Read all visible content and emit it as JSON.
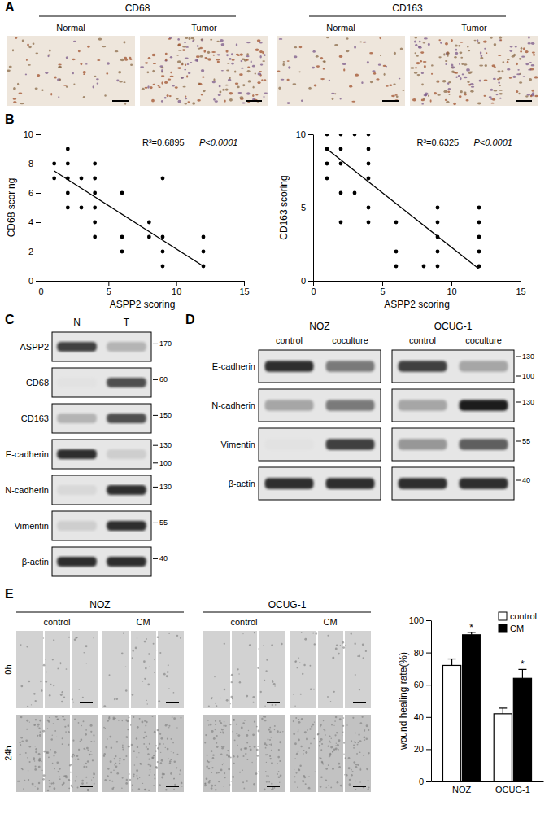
{
  "panel_labels": [
    "A",
    "B",
    "C",
    "D",
    "E"
  ],
  "panel_a": {
    "groups": [
      {
        "title": "CD68",
        "images": [
          "Normal",
          "Tumor"
        ]
      },
      {
        "title": "CD163",
        "images": [
          "Normal",
          "Tumor"
        ]
      }
    ]
  },
  "chart_data": [
    {
      "type": "scatter",
      "xlabel": "ASPP2 scoring",
      "ylabel": "CD68 scoring",
      "color": "#000000",
      "marker": "circle",
      "x": [
        1,
        1,
        2,
        2,
        2,
        2,
        2,
        3,
        3,
        4,
        4,
        4,
        4,
        4,
        4,
        6,
        6,
        6,
        8,
        8,
        9,
        9,
        9,
        9,
        12,
        12,
        12
      ],
      "values": [
        8,
        7,
        9,
        8,
        7,
        6,
        5,
        7,
        5,
        8,
        7,
        6,
        5,
        4,
        3,
        6,
        3,
        2,
        4,
        3,
        7,
        3,
        2,
        1,
        3,
        2,
        1
      ],
      "xlim": [
        0,
        15
      ],
      "xticks": [
        0,
        5,
        10,
        15
      ],
      "ylim": [
        0,
        10
      ],
      "yticks": [
        0,
        2,
        4,
        6,
        8,
        10
      ],
      "annotations": [
        "R²=0.6895",
        "P<0.0001"
      ],
      "fit": {
        "x": [
          1,
          12
        ],
        "y": [
          7.5,
          1
        ]
      }
    },
    {
      "type": "scatter",
      "xlabel": "ASPP2 scoring",
      "ylabel": "CD163 scoring",
      "color": "#000000",
      "marker": "circle",
      "x": [
        1,
        1,
        1,
        1,
        2,
        2,
        2,
        2,
        2,
        3,
        3,
        4,
        4,
        4,
        4,
        4,
        4,
        6,
        6,
        6,
        8,
        9,
        9,
        9,
        9,
        9,
        12,
        12,
        12,
        12,
        12
      ],
      "values": [
        10,
        9,
        8,
        7,
        10,
        9,
        8,
        6,
        4,
        10,
        6,
        10,
        9,
        8,
        7,
        5,
        4,
        4,
        2,
        1,
        1,
        5,
        4,
        3,
        2,
        1,
        5,
        4,
        3,
        2,
        1
      ],
      "xlim": [
        0,
        15
      ],
      "xticks": [
        0,
        5,
        10,
        15
      ],
      "ylim": [
        0,
        10
      ],
      "yticks": [
        0,
        5,
        10
      ],
      "annotations": [
        "R²=0.6325",
        "P<0.0001"
      ],
      "fit": {
        "x": [
          1,
          12
        ],
        "y": [
          9,
          0.8
        ]
      }
    },
    {
      "type": "bar",
      "categories": [
        "NOZ",
        "OCUG-1"
      ],
      "ylabel": "wound healing rate(%)",
      "series": [
        {
          "name": "control",
          "color": "#ffffff",
          "values": [
            72,
            42
          ],
          "errors": [
            4,
            3.5
          ]
        },
        {
          "name": "CM",
          "color": "#000000",
          "values": [
            91,
            64
          ],
          "errors": [
            1.5,
            5.5
          ],
          "significance": [
            "*",
            "*"
          ]
        }
      ],
      "ylim": [
        0,
        100
      ],
      "yticks": [
        0,
        20,
        40,
        60,
        80,
        100
      ],
      "legend": "upper right"
    }
  ],
  "panel_c": {
    "lanes": [
      "N",
      "T"
    ],
    "rows": [
      "ASPP2",
      "CD68",
      "CD163",
      "E-cadherin",
      "N-cadherin",
      "Vimentin",
      "β-actin"
    ],
    "markers": [
      [
        170
      ],
      [
        60
      ],
      [
        150
      ],
      [
        130,
        100
      ],
      [
        130
      ],
      [
        55
      ],
      [
        40
      ]
    ],
    "bands": [
      [
        0.8,
        0.4
      ],
      [
        0.2,
        0.75
      ],
      [
        0.4,
        0.75
      ],
      [
        0.85,
        0.3
      ],
      [
        0.25,
        0.85
      ],
      [
        0.3,
        0.85
      ],
      [
        0.85,
        0.85
      ]
    ]
  },
  "panel_d": {
    "rows": [
      "E-cadherin",
      "N-cadherin",
      "Vimentin",
      "β-actin"
    ],
    "markers": [
      [
        130,
        100
      ],
      [
        130
      ],
      [
        55
      ],
      [
        40
      ]
    ],
    "cell_lines": [
      {
        "name": "NOZ",
        "lanes": [
          "control",
          "coculture"
        ],
        "bands": [
          [
            0.85,
            0.6
          ],
          [
            0.45,
            0.6
          ],
          [
            0.2,
            0.8
          ],
          [
            0.85,
            0.85
          ]
        ]
      },
      {
        "name": "OCUG-1",
        "lanes": [
          "control",
          "coculture"
        ],
        "bands": [
          [
            0.8,
            0.45
          ],
          [
            0.45,
            0.9
          ],
          [
            0.5,
            0.7
          ],
          [
            0.85,
            0.85
          ]
        ]
      }
    ]
  },
  "panel_e": {
    "cell_lines": [
      "NOZ",
      "OCUG-1"
    ],
    "conditions": [
      "control",
      "CM"
    ],
    "times": [
      "0h",
      "24h"
    ]
  }
}
